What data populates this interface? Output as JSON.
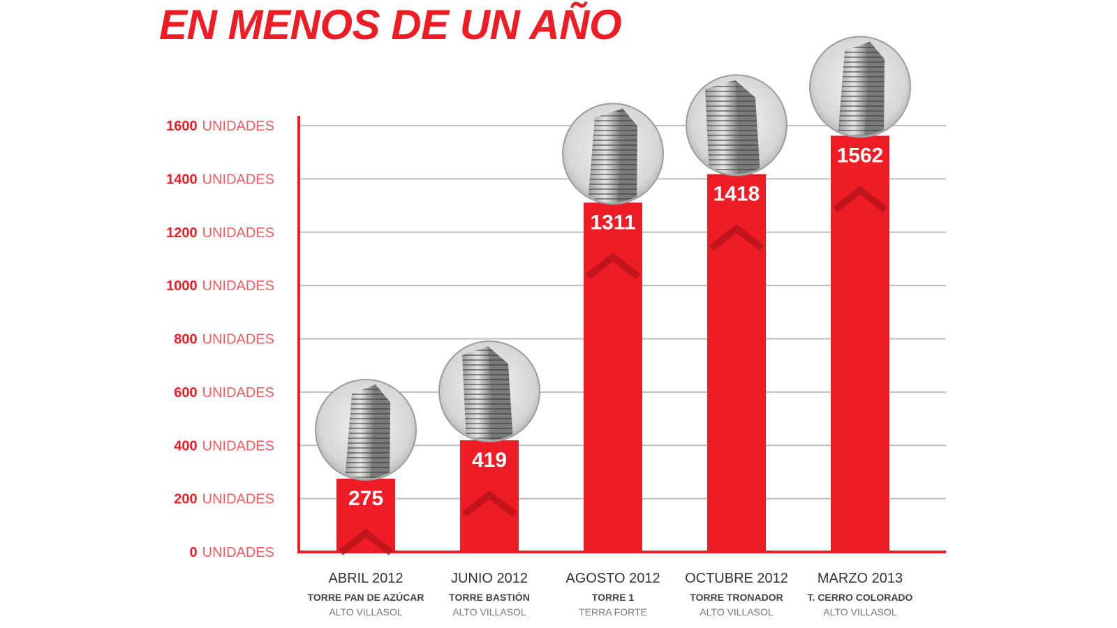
{
  "title": "EN MENOS DE UN AÑO",
  "colors": {
    "accent": "#ee1c25",
    "chevron": "#b3111a",
    "grid": "#bdbdbd",
    "text_dark": "#333333"
  },
  "chart_data": {
    "type": "bar",
    "title": "EN MENOS DE UN AÑO",
    "ylim": [
      0,
      1600
    ],
    "y_ticks": [
      0,
      200,
      400,
      600,
      800,
      1000,
      1200,
      1400,
      1600
    ],
    "y_tick_unit": "UNIDADES",
    "grid": true,
    "legend": "none",
    "bar_icon": "building-photo",
    "categories": [
      {
        "date": "ABRIL 2012",
        "tower": "TORRE PAN DE AZÚCAR",
        "project": "ALTO VILLASOL"
      },
      {
        "date": "JUNIO 2012",
        "tower": "TORRE BASTIÓN",
        "project": "ALTO VILLASOL"
      },
      {
        "date": "AGOSTO 2012",
        "tower": "TORRE 1",
        "project": "TERRA FORTE"
      },
      {
        "date": "OCTUBRE 2012",
        "tower": "TORRE TRONADOR",
        "project": "ALTO VILLASOL"
      },
      {
        "date": "MARZO 2013",
        "tower": "T. CERRO COLORADO",
        "project": "ALTO VILLASOL"
      }
    ],
    "values": [
      275,
      419,
      1311,
      1418,
      1562
    ]
  }
}
